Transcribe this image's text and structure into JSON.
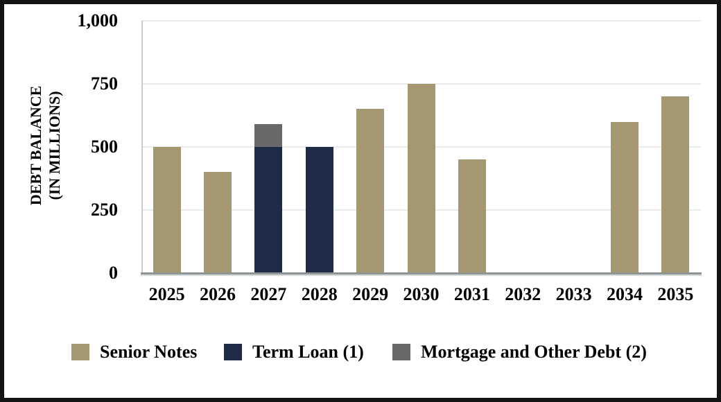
{
  "chart_data": {
    "type": "bar",
    "stacked": true,
    "ylabel_line1": "DEBT BALANCE",
    "ylabel_line2": "(IN MILLIONS)",
    "xlabel": "",
    "categories": [
      "2025",
      "2026",
      "2027",
      "2028",
      "2029",
      "2030",
      "2031",
      "2032",
      "2033",
      "2034",
      "2035"
    ],
    "series": [
      {
        "name": "Senior Notes",
        "color": "#a39870",
        "values": [
          500,
          400,
          0,
          0,
          650,
          750,
          450,
          0,
          0,
          600,
          700
        ]
      },
      {
        "name": "Term Loan (1)",
        "color": "#1e2a47",
        "values": [
          0,
          0,
          500,
          500,
          0,
          0,
          0,
          0,
          0,
          0,
          0
        ]
      },
      {
        "name": "Mortgage and Other Debt (2)",
        "color": "#696969",
        "values": [
          0,
          0,
          90,
          0,
          0,
          0,
          0,
          0,
          0,
          0,
          0
        ]
      }
    ],
    "ylim": [
      0,
      1000
    ],
    "y_ticks": [
      {
        "value": 0,
        "label": "0"
      },
      {
        "value": 250,
        "label": "250"
      },
      {
        "value": 500,
        "label": "500"
      },
      {
        "value": 750,
        "label": "750"
      },
      {
        "value": 1000,
        "label": "1,000"
      }
    ],
    "grid": true,
    "legend_position": "bottom"
  },
  "legend": {
    "items": [
      {
        "label": "Senior Notes",
        "color": "#a39870"
      },
      {
        "label": "Term Loan (1)",
        "color": "#1e2a47"
      },
      {
        "label": "Mortgage and Other Debt (2)",
        "color": "#696969"
      }
    ]
  },
  "colors": {
    "frame_border": "#141414",
    "gridline": "#e9ebeb",
    "axis_line": "#c9cdcd",
    "baseline": "#8f9495",
    "senior_notes": "#a39870",
    "term_loan": "#1e2a47",
    "mortgage_other": "#696969"
  }
}
